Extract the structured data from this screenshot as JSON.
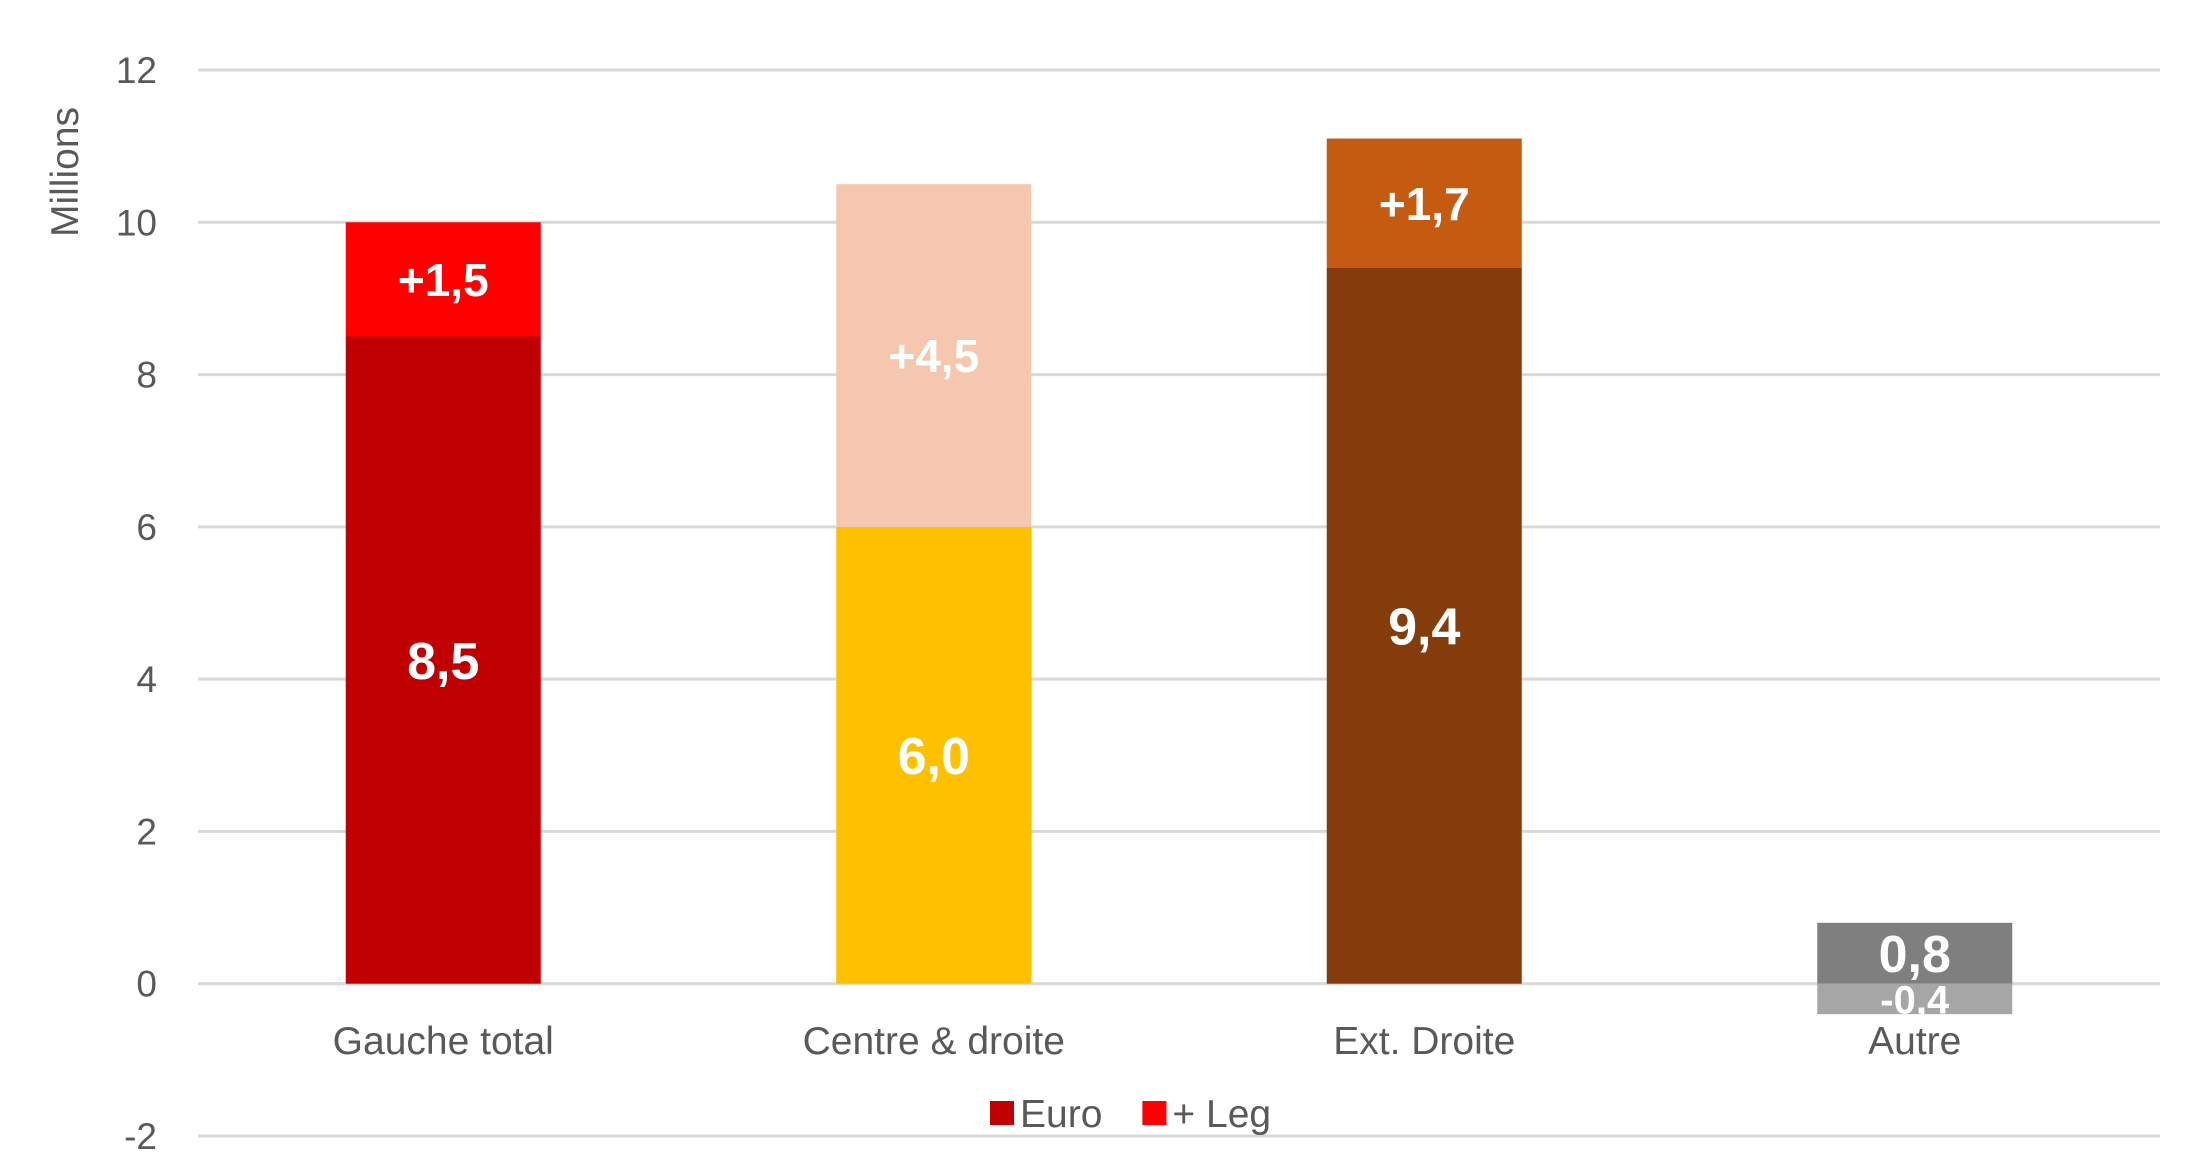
{
  "chart_data": {
    "type": "bar",
    "stacked": true,
    "ylabel": "Millions",
    "ylim": [
      -2,
      12
    ],
    "yticks": [
      -2,
      0,
      2,
      4,
      6,
      8,
      10,
      12
    ],
    "grid": true,
    "legend_position": "bottom",
    "categories": [
      "Gauche total",
      "Centre & droite",
      "Ext. Droite",
      "Autre"
    ],
    "series": [
      {
        "name": "Euro",
        "values": [
          8.5,
          6.0,
          9.4,
          0.8
        ],
        "labels": [
          "8,5",
          "6,0",
          "9,4",
          "0,8"
        ],
        "colors": [
          "#C00000",
          "#FFC000",
          "#843C0C",
          "#7F7F7F"
        ],
        "legend_color": "#C00000"
      },
      {
        "name": "+ Leg",
        "values": [
          1.5,
          4.5,
          1.7,
          -0.4
        ],
        "labels": [
          "+1,5",
          "+4,5",
          "+1,7",
          "-0,4"
        ],
        "colors": [
          "#FF0000",
          "#F4C7AE",
          "#C55A11",
          "#A6A6A6"
        ],
        "legend_color": "#FF0000"
      }
    ]
  }
}
